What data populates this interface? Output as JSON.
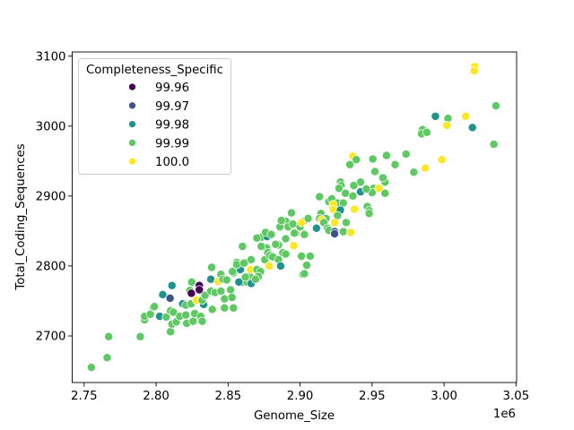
{
  "chart_data": {
    "type": "scatter",
    "xlabel": "Genome_Size",
    "ylabel": "Total_Coding_Sequences",
    "x_offset_text": "1e6",
    "xlim": [
      2.7417,
      3.0504
    ],
    "ylim": [
      2633.4,
      3106
    ],
    "xticks": [
      2.75,
      2.8,
      2.85,
      2.9,
      2.95,
      3.0,
      3.05
    ],
    "xtick_labels": [
      "2.75",
      "2.80",
      "2.85",
      "2.90",
      "2.95",
      "3.00",
      "3.05"
    ],
    "yticks": [
      2700,
      2800,
      2900,
      3000,
      3100
    ],
    "ytick_labels": [
      "2700",
      "2800",
      "2900",
      "3000",
      "3100"
    ],
    "grid": false,
    "legend": {
      "title": "Completeness_Specific",
      "placement": "upper-left",
      "entries": [
        {
          "label": "99.96",
          "color": "#440154"
        },
        {
          "label": "99.97",
          "color": "#3b528b"
        },
        {
          "label": "99.98",
          "color": "#21918c"
        },
        {
          "label": "99.99",
          "color": "#5ec962"
        },
        {
          "label": "100.0",
          "color": "#fde725"
        }
      ]
    },
    "point_fields": [
      "Genome_Size (1e6)",
      "Total_Coding_Sequences",
      "Completeness_Specific"
    ],
    "points": [
      [
        2.755,
        2655,
        "99.99"
      ],
      [
        2.766,
        2669,
        "99.99"
      ],
      [
        2.767,
        2699,
        "99.99"
      ],
      [
        2.789,
        2699,
        "99.99"
      ],
      [
        2.792,
        2723,
        "99.99"
      ],
      [
        2.792,
        2728,
        "99.99"
      ],
      [
        2.796,
        2731,
        "99.99"
      ],
      [
        2.798,
        2741,
        "99.99"
      ],
      [
        2.7988,
        2742,
        "99.99"
      ],
      [
        2.8025,
        2728,
        "99.98"
      ],
      [
        2.8046,
        2759,
        "99.98"
      ],
      [
        2.8097,
        2754,
        "99.97"
      ],
      [
        2.811,
        2772,
        "99.98"
      ],
      [
        2.81,
        2706,
        "99.99"
      ],
      [
        2.807,
        2727,
        "99.99"
      ],
      [
        2.81,
        2736,
        "99.99"
      ],
      [
        2.812,
        2734,
        "99.99"
      ],
      [
        2.811,
        2717,
        "99.99"
      ],
      [
        2.814,
        2720,
        "99.99"
      ],
      [
        2.8164,
        2728,
        "99.99"
      ],
      [
        2.8206,
        2730,
        "99.99"
      ],
      [
        2.8212,
        2718,
        "99.99"
      ],
      [
        2.8257,
        2721,
        "99.99"
      ],
      [
        2.8268,
        2732,
        "99.99"
      ],
      [
        2.831,
        2728,
        "99.99"
      ],
      [
        2.832,
        2721,
        "99.99"
      ],
      [
        2.8185,
        2746,
        "99.98"
      ],
      [
        2.8206,
        2744,
        "99.99"
      ],
      [
        2.8243,
        2746,
        "99.99"
      ],
      [
        2.8247,
        2777,
        "99.99"
      ],
      [
        2.8234,
        2765,
        "99.99"
      ],
      [
        2.8245,
        2761,
        "99.96"
      ],
      [
        2.83,
        2772,
        "99.96"
      ],
      [
        2.83,
        2766,
        "99.96"
      ],
      [
        2.828,
        2751,
        "100.0"
      ],
      [
        2.833,
        2745,
        "99.98"
      ],
      [
        2.832,
        2751,
        "99.99"
      ],
      [
        2.834,
        2758,
        "99.99"
      ],
      [
        2.839,
        2738,
        "99.99"
      ],
      [
        2.838,
        2764,
        "99.99"
      ],
      [
        2.841,
        2762,
        "99.99"
      ],
      [
        2.845,
        2764,
        "99.99"
      ],
      [
        2.8475,
        2753,
        "99.99"
      ],
      [
        2.8517,
        2766,
        "99.99"
      ],
      [
        2.8527,
        2755,
        "99.99"
      ],
      [
        2.8475,
        2740,
        "99.99"
      ],
      [
        2.8537,
        2740,
        "99.99"
      ],
      [
        2.845,
        2788,
        "99.99"
      ],
      [
        2.8386,
        2798,
        "99.99"
      ],
      [
        2.838,
        2781,
        "99.98"
      ],
      [
        2.843,
        2778,
        "100.0"
      ],
      [
        2.8465,
        2781,
        "99.99"
      ],
      [
        2.849,
        2780,
        "99.99"
      ],
      [
        2.8537,
        2790,
        "99.99"
      ],
      [
        2.858,
        2794,
        "99.98"
      ],
      [
        2.86,
        2777,
        "99.98"
      ],
      [
        2.863,
        2777,
        "99.99"
      ],
      [
        2.865,
        2785,
        "99.99"
      ],
      [
        2.856,
        2805,
        "99.99"
      ],
      [
        2.853,
        2792,
        "99.99"
      ],
      [
        2.8585,
        2795,
        "99.98"
      ],
      [
        2.86,
        2828,
        "99.99"
      ],
      [
        2.862,
        2805,
        "99.99"
      ],
      [
        2.866,
        2809,
        "99.99"
      ],
      [
        2.8657,
        2795,
        "100.0"
      ],
      [
        2.8575,
        2777,
        "99.98"
      ],
      [
        2.862,
        2784,
        "99.99"
      ],
      [
        2.866,
        2775,
        "99.98"
      ],
      [
        2.87,
        2795,
        "99.99"
      ],
      [
        2.8725,
        2792,
        "99.99"
      ],
      [
        2.871,
        2785,
        "99.99"
      ],
      [
        2.869,
        2781,
        "99.99"
      ],
      [
        2.8755,
        2809,
        "99.99"
      ],
      [
        2.8786,
        2800,
        "100.0"
      ],
      [
        2.8766,
        2826,
        "99.99"
      ],
      [
        2.8776,
        2819,
        "99.99"
      ],
      [
        2.879,
        2815,
        "99.99"
      ],
      [
        2.881,
        2813,
        "99.99"
      ],
      [
        2.873,
        2841,
        "99.99"
      ],
      [
        2.873,
        2828,
        "99.99"
      ],
      [
        2.8777,
        2842,
        "99.98"
      ],
      [
        2.885,
        2830,
        "99.99"
      ],
      [
        2.888,
        2819,
        "99.99"
      ],
      [
        2.89,
        2817,
        "99.99"
      ],
      [
        2.885,
        2809,
        "99.99"
      ],
      [
        2.8865,
        2800,
        "99.98"
      ],
      [
        2.89,
        2839,
        "99.99"
      ],
      [
        2.886,
        2856,
        "99.99"
      ],
      [
        2.89,
        2864,
        "99.99"
      ],
      [
        2.8917,
        2856,
        "99.99"
      ],
      [
        2.895,
        2860,
        "99.99"
      ],
      [
        2.897,
        2847,
        "99.99"
      ],
      [
        2.9,
        2856,
        "99.99"
      ],
      [
        2.9025,
        2864,
        "99.99"
      ],
      [
        2.8956,
        2829,
        "100.0"
      ],
      [
        2.902,
        2788,
        "99.99"
      ],
      [
        2.9367,
        2957,
        "100.0"
      ],
      [
        2.939,
        2952,
        "99.99"
      ],
      [
        2.9346,
        2945,
        "99.99"
      ],
      [
        2.9505,
        2953,
        "99.99"
      ],
      [
        2.96,
        2958,
        "99.99"
      ],
      [
        2.966,
        2945,
        "99.99"
      ],
      [
        2.952,
        2935,
        "99.99"
      ],
      [
        2.957,
        2926,
        "99.99"
      ],
      [
        2.959,
        2920,
        "99.99"
      ],
      [
        2.942,
        2920,
        "99.99"
      ],
      [
        2.9373,
        2915,
        "99.99"
      ],
      [
        2.928,
        2920,
        "99.99"
      ],
      [
        2.9285,
        2915,
        "99.99"
      ],
      [
        2.927,
        2911,
        "99.99"
      ],
      [
        2.942,
        2906,
        "99.98"
      ],
      [
        2.9315,
        2904,
        "99.99"
      ],
      [
        2.9367,
        2900,
        "99.99"
      ],
      [
        2.951,
        2911,
        "99.99"
      ],
      [
        2.95,
        2905,
        "99.99"
      ],
      [
        2.9547,
        2911,
        "100.0"
      ],
      [
        2.959,
        2904,
        "99.99"
      ],
      [
        2.9135,
        2899,
        "99.99"
      ],
      [
        2.92,
        2892,
        "99.99"
      ],
      [
        2.922,
        2896,
        "99.99"
      ],
      [
        2.926,
        2890,
        "99.99"
      ],
      [
        2.93,
        2890,
        "99.99"
      ],
      [
        2.923,
        2888,
        "100.0"
      ],
      [
        2.923,
        2881,
        "100.0"
      ],
      [
        2.928,
        2880,
        "99.98"
      ],
      [
        2.9377,
        2881,
        "100.0"
      ],
      [
        2.9467,
        2885,
        "99.99"
      ],
      [
        2.948,
        2879,
        "99.99"
      ],
      [
        2.948,
        2875,
        "99.99"
      ],
      [
        2.9145,
        2875,
        "99.99"
      ],
      [
        2.918,
        2868,
        "99.99"
      ],
      [
        2.9135,
        2868,
        "99.99"
      ],
      [
        2.926,
        2872,
        "99.99"
      ],
      [
        2.915,
        2866,
        "100.0"
      ],
      [
        2.924,
        2862,
        "100.0"
      ],
      [
        2.932,
        2862,
        "99.99"
      ],
      [
        2.9114,
        2854,
        "99.98"
      ],
      [
        2.9165,
        2862,
        "99.99"
      ],
      [
        2.919,
        2854,
        "99.99"
      ],
      [
        2.92,
        2851,
        "99.99"
      ],
      [
        2.93,
        2849,
        "99.99"
      ],
      [
        2.9352,
        2848,
        "100.0"
      ],
      [
        2.924,
        2849,
        "99.97"
      ],
      [
        2.924,
        2846,
        "99.97"
      ],
      [
        2.901,
        2862,
        "100.0"
      ],
      [
        2.9056,
        2868,
        "99.99"
      ],
      [
        2.894,
        2876,
        "99.99"
      ],
      [
        2.887,
        2865,
        "99.99"
      ],
      [
        2.896,
        2847,
        "99.99"
      ],
      [
        2.903,
        2845,
        "99.99"
      ],
      [
        2.877,
        2842,
        "99.98"
      ],
      [
        2.876,
        2848,
        "99.99"
      ],
      [
        2.87,
        2840,
        "99.99"
      ],
      [
        2.88,
        2845,
        "99.99"
      ],
      [
        2.883,
        2831,
        "99.99"
      ],
      [
        2.901,
        2814,
        "99.99"
      ],
      [
        2.907,
        2814,
        "99.99"
      ],
      [
        2.9046,
        2801,
        "99.99"
      ],
      [
        2.903,
        2789,
        "99.99"
      ],
      [
        2.856,
        2802,
        "99.99"
      ],
      [
        2.861,
        2804,
        "99.99"
      ],
      [
        2.994,
        3014,
        "99.98"
      ],
      [
        3.0027,
        3011,
        "99.99"
      ],
      [
        3.015,
        3014,
        "100.0"
      ],
      [
        3.002,
        3001,
        "100.0"
      ],
      [
        3.0197,
        2998,
        "99.98"
      ],
      [
        2.985,
        2995,
        "99.99"
      ],
      [
        2.9844,
        2989,
        "99.99"
      ],
      [
        2.988,
        2991,
        "99.99"
      ],
      [
        3.0346,
        2974,
        "99.99"
      ],
      [
        3.036,
        3029,
        "99.99"
      ],
      [
        3.0213,
        3085,
        "100.0"
      ],
      [
        3.021,
        3079,
        "100.0"
      ],
      [
        2.9985,
        2952,
        "100.0"
      ],
      [
        2.9736,
        2960,
        "99.99"
      ],
      [
        2.987,
        2940,
        "100.0"
      ],
      [
        2.979,
        2934,
        "99.99"
      ],
      [
        2.9575,
        2926,
        "99.99"
      ],
      [
        2.946,
        2910,
        "99.99"
      ]
    ]
  }
}
